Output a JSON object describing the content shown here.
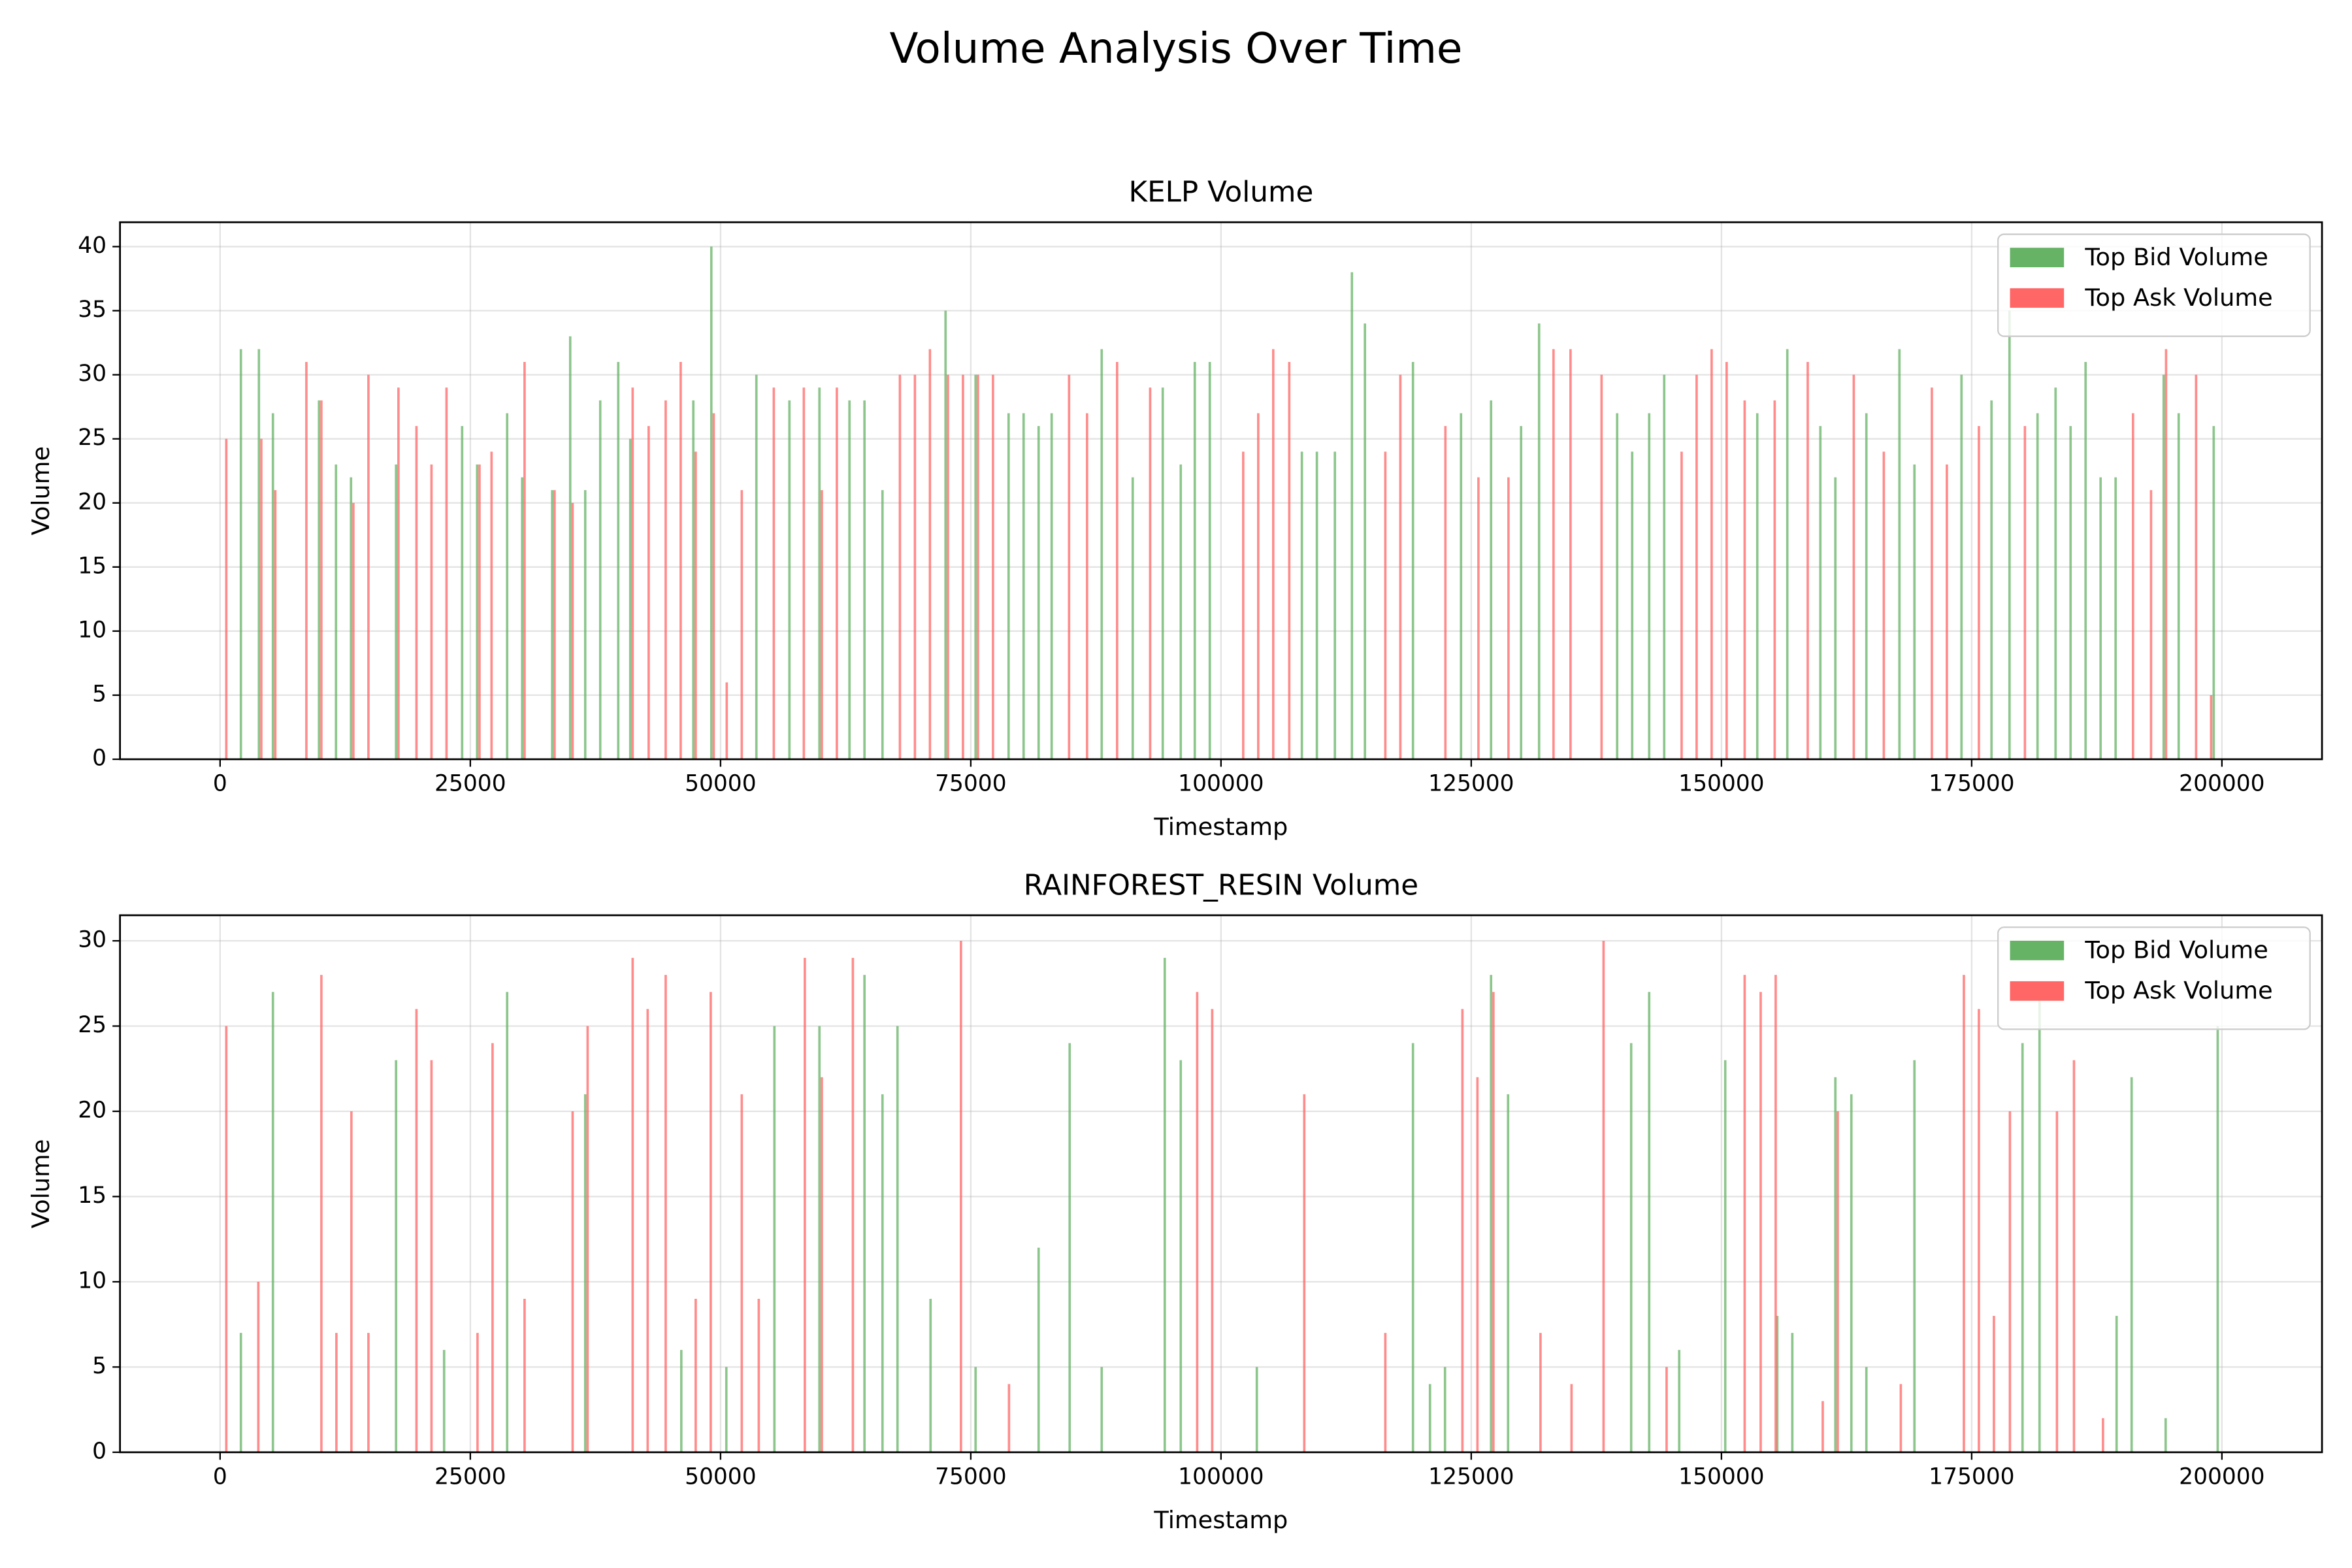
{
  "title": "Volume Analysis Over Time",
  "chart_data": [
    {
      "type": "bar",
      "title": "KELP Volume",
      "xlabel": "Timestamp",
      "ylabel": "Volume",
      "xlim": [
        -10000,
        210000
      ],
      "ylim": [
        0,
        41.9
      ],
      "xticks": [
        0,
        25000,
        50000,
        75000,
        100000,
        125000,
        150000,
        175000,
        200000
      ],
      "yticks": [
        0,
        5,
        10,
        15,
        20,
        25,
        30,
        35,
        40
      ],
      "grid": true,
      "legend": "upper right",
      "series": [
        {
          "name": "Top Bid Volume",
          "color": "#66b366",
          "x": [
            2200,
            4000,
            5400,
            10000,
            11700,
            13200,
            17700,
            24300,
            25800,
            28800,
            30300,
            33300,
            35100,
            36600,
            38100,
            39900,
            41100,
            47400,
            49200,
            53700,
            57000,
            60000,
            63000,
            64500,
            66300,
            72600,
            75600,
            78900,
            80400,
            81900,
            83200,
            88200,
            91300,
            94300,
            96100,
            97500,
            99000,
            108200,
            109700,
            111500,
            113200,
            114500,
            119300,
            124100,
            127100,
            130100,
            131900,
            139700,
            141200,
            142900,
            144400,
            153700,
            156700,
            160000,
            161500,
            164600,
            167900,
            169400,
            174100,
            177100,
            178900,
            181700,
            183500,
            185000,
            186500,
            188000,
            189500,
            194300,
            195800,
            199300
          ],
          "values": [
            32,
            32,
            27,
            28,
            23,
            22,
            23,
            26,
            23,
            27,
            22,
            21,
            33,
            21,
            28,
            31,
            25,
            28,
            40,
            30,
            28,
            29,
            28,
            28,
            21,
            35,
            30,
            27,
            27,
            26,
            27,
            32,
            22,
            29,
            23,
            31,
            31,
            24,
            24,
            24,
            38,
            34,
            31,
            27,
            28,
            26,
            34,
            27,
            24,
            27,
            30,
            27,
            32,
            26,
            22,
            27,
            32,
            23,
            30,
            28,
            35,
            27,
            29,
            26,
            31,
            22,
            22,
            30,
            27,
            26
          ]
        },
        {
          "name": "Top Ask Volume",
          "color": "#ff6666",
          "x": [
            500,
            4000,
            5400,
            8500,
            10000,
            13200,
            14700,
            17700,
            19500,
            21000,
            22500,
            25800,
            27000,
            30300,
            33300,
            35100,
            41100,
            42700,
            44400,
            45900,
            47400,
            49200,
            50500,
            52000,
            55200,
            58200,
            60000,
            61500,
            67800,
            69300,
            70800,
            72600,
            74100,
            75600,
            77100,
            84700,
            86500,
            89500,
            92800,
            102100,
            103600,
            105100,
            106700,
            116300,
            117800,
            122300,
            125600,
            128600,
            133100,
            134800,
            137900,
            145900,
            147400,
            148900,
            150400,
            152200,
            155200,
            158500,
            163100,
            166100,
            170900,
            172400,
            175600,
            180200,
            191000,
            192800,
            194300,
            197300,
            198800
          ],
          "values": [
            25,
            25,
            21,
            31,
            28,
            20,
            30,
            29,
            26,
            23,
            29,
            23,
            24,
            31,
            21,
            20,
            29,
            26,
            28,
            31,
            24,
            27,
            6,
            21,
            29,
            29,
            21,
            29,
            30,
            30,
            32,
            30,
            30,
            30,
            30,
            30,
            27,
            31,
            29,
            24,
            27,
            32,
            31,
            24,
            30,
            26,
            22,
            22,
            32,
            32,
            30,
            24,
            30,
            32,
            31,
            28,
            28,
            31,
            30,
            24,
            29,
            23,
            26,
            26,
            27,
            21,
            32,
            30,
            5
          ]
        }
      ]
    },
    {
      "type": "bar",
      "title": "RAINFOREST_RESIN Volume",
      "xlabel": "Timestamp",
      "ylabel": "Volume",
      "xlim": [
        -10000,
        210000
      ],
      "ylim": [
        0,
        31.5
      ],
      "xticks": [
        0,
        25000,
        50000,
        75000,
        100000,
        125000,
        150000,
        175000,
        200000
      ],
      "yticks": [
        0,
        5,
        10,
        15,
        20,
        25,
        30
      ],
      "grid": true,
      "legend": "upper right",
      "series": [
        {
          "name": "Top Bid Volume",
          "color": "#66b366",
          "x": [
            2200,
            5400,
            17700,
            22500,
            28800,
            36600,
            46200,
            50700,
            55500,
            60000,
            64500,
            66300,
            67800,
            71100,
            75600,
            81900,
            85000,
            88200,
            94500,
            96100,
            103700,
            119300,
            121000,
            122500,
            127100,
            128800,
            141100,
            142900,
            145900,
            150500,
            155700,
            157200,
            161500,
            163100,
            164600,
            169400,
            180200,
            181900,
            189600,
            191100,
            194500,
            199700
          ],
          "values": [
            7,
            27,
            23,
            6,
            27,
            21,
            6,
            5,
            25,
            25,
            28,
            21,
            25,
            9,
            5,
            12,
            24,
            5,
            29,
            23,
            5,
            24,
            4,
            5,
            28,
            21,
            24,
            27,
            6,
            23,
            8,
            7,
            22,
            21,
            5,
            23,
            24,
            27,
            8,
            22,
            2,
            25
          ]
        },
        {
          "name": "Top Ask Volume",
          "color": "#ff6666",
          "x": [
            500,
            3700,
            10000,
            11500,
            13000,
            14700,
            19500,
            21000,
            25600,
            27100,
            30300,
            35100,
            36600,
            41100,
            42600,
            44400,
            47400,
            48900,
            52000,
            53700,
            58300,
            60000,
            63100,
            73900,
            78700,
            97500,
            99000,
            108200,
            116300,
            124000,
            125500,
            127100,
            131800,
            134900,
            138100,
            144400,
            152200,
            153800,
            155300,
            160000,
            161500,
            167800,
            174100,
            175600,
            177100,
            178700,
            183400,
            185100,
            188000
          ],
          "values": [
            25,
            10,
            28,
            7,
            20,
            7,
            26,
            23,
            7,
            24,
            9,
            20,
            25,
            29,
            26,
            28,
            9,
            27,
            21,
            9,
            29,
            22,
            29,
            30,
            4,
            27,
            26,
            21,
            7,
            26,
            22,
            27,
            7,
            4,
            30,
            5,
            28,
            27,
            28,
            3,
            20,
            4,
            28,
            26,
            8,
            20,
            20,
            23,
            2
          ]
        }
      ]
    }
  ]
}
